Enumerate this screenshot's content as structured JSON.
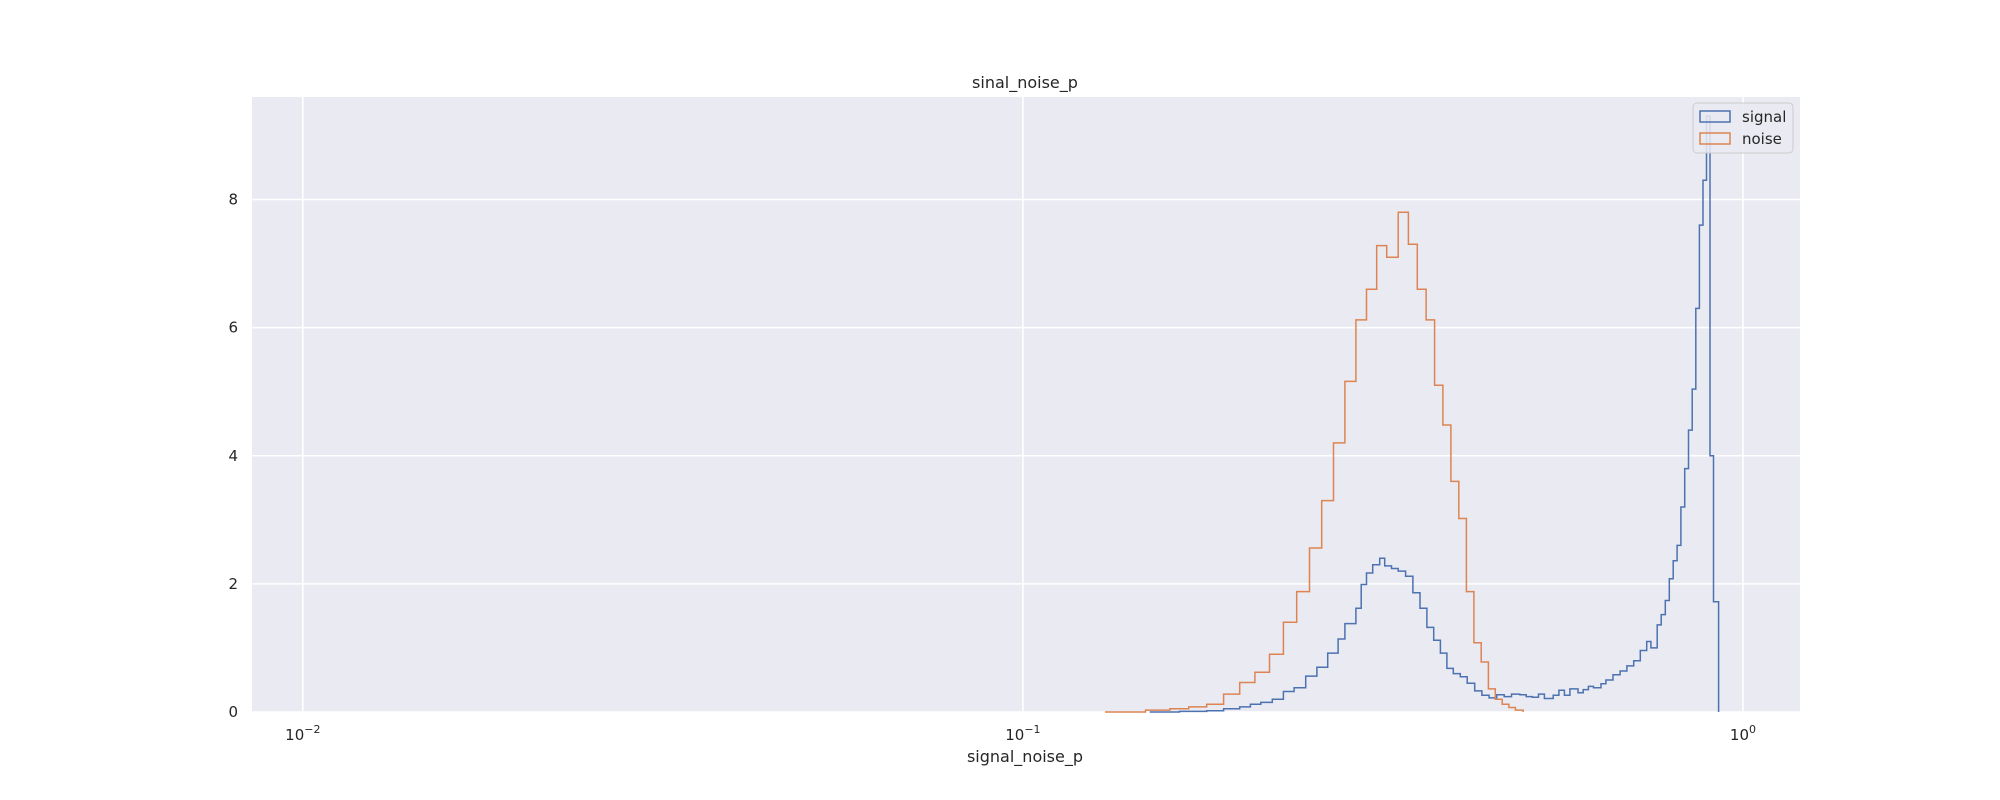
{
  "chart_data": {
    "type": "histogram-step",
    "title": "sinal_noise_p",
    "xlabel": "signal_noise_p",
    "ylabel": "",
    "x_scale": "log",
    "xlim": [
      0.0085,
      1.2
    ],
    "ylim": [
      0,
      9.6
    ],
    "x_ticks": [
      {
        "value": 0.01,
        "label": "10",
        "exp": "−2"
      },
      {
        "value": 0.1,
        "label": "10",
        "exp": "−1"
      },
      {
        "value": 1,
        "label": "10",
        "exp": "0"
      }
    ],
    "y_ticks": [
      0,
      2,
      4,
      6,
      8
    ],
    "grid": true,
    "legend_position": "top-right",
    "legend": [
      "signal",
      "noise"
    ],
    "colors": {
      "background": "#eaeaf2",
      "grid": "#ffffff",
      "signal": "#4c72b0",
      "noise": "#dd8452",
      "text": "#262626"
    },
    "series": [
      {
        "name": "signal",
        "color": "#4c72b0",
        "points": [
          [
            0.15,
            0.0
          ],
          [
            0.165,
            0.01
          ],
          [
            0.18,
            0.02
          ],
          [
            0.19,
            0.05
          ],
          [
            0.2,
            0.08
          ],
          [
            0.207,
            0.12
          ],
          [
            0.214,
            0.15
          ],
          [
            0.222,
            0.2
          ],
          [
            0.23,
            0.32
          ],
          [
            0.238,
            0.38
          ],
          [
            0.247,
            0.56
          ],
          [
            0.256,
            0.7
          ],
          [
            0.265,
            0.92
          ],
          [
            0.274,
            1.14
          ],
          [
            0.28,
            1.38
          ],
          [
            0.29,
            1.62
          ],
          [
            0.295,
            1.99
          ],
          [
            0.3,
            2.17
          ],
          [
            0.306,
            2.3
          ],
          [
            0.313,
            2.4
          ],
          [
            0.318,
            2.28
          ],
          [
            0.325,
            2.24
          ],
          [
            0.332,
            2.2
          ],
          [
            0.34,
            2.12
          ],
          [
            0.348,
            1.86
          ],
          [
            0.356,
            1.62
          ],
          [
            0.364,
            1.32
          ],
          [
            0.372,
            1.12
          ],
          [
            0.38,
            0.92
          ],
          [
            0.388,
            0.68
          ],
          [
            0.396,
            0.6
          ],
          [
            0.405,
            0.55
          ],
          [
            0.414,
            0.45
          ],
          [
            0.424,
            0.33
          ],
          [
            0.434,
            0.26
          ],
          [
            0.444,
            0.22
          ],
          [
            0.455,
            0.27
          ],
          [
            0.466,
            0.24
          ],
          [
            0.477,
            0.28
          ],
          [
            0.49,
            0.27
          ],
          [
            0.5,
            0.24
          ],
          [
            0.51,
            0.23
          ],
          [
            0.52,
            0.28
          ],
          [
            0.53,
            0.21
          ],
          [
            0.545,
            0.26
          ],
          [
            0.555,
            0.34
          ],
          [
            0.565,
            0.26
          ],
          [
            0.575,
            0.36
          ],
          [
            0.59,
            0.3
          ],
          [
            0.6,
            0.35
          ],
          [
            0.61,
            0.4
          ],
          [
            0.62,
            0.38
          ],
          [
            0.635,
            0.44
          ],
          [
            0.645,
            0.5
          ],
          [
            0.66,
            0.58
          ],
          [
            0.675,
            0.64
          ],
          [
            0.69,
            0.72
          ],
          [
            0.705,
            0.8
          ],
          [
            0.72,
            0.96
          ],
          [
            0.735,
            1.1
          ],
          [
            0.745,
            1.0
          ],
          [
            0.76,
            1.36
          ],
          [
            0.77,
            1.52
          ],
          [
            0.78,
            1.74
          ],
          [
            0.79,
            2.08
          ],
          [
            0.8,
            2.36
          ],
          [
            0.81,
            2.6
          ],
          [
            0.82,
            3.2
          ],
          [
            0.83,
            3.8
          ],
          [
            0.84,
            4.4
          ],
          [
            0.85,
            5.04
          ],
          [
            0.86,
            6.3
          ],
          [
            0.87,
            7.6
          ],
          [
            0.88,
            8.3
          ],
          [
            0.89,
            9.3
          ],
          [
            0.9,
            4.0
          ],
          [
            0.91,
            1.72
          ],
          [
            0.925,
            0.0
          ]
        ]
      },
      {
        "name": "noise",
        "color": "#dd8452",
        "points": [
          [
            0.13,
            0.0
          ],
          [
            0.148,
            0.03
          ],
          [
            0.16,
            0.05
          ],
          [
            0.17,
            0.08
          ],
          [
            0.18,
            0.12
          ],
          [
            0.19,
            0.28
          ],
          [
            0.2,
            0.46
          ],
          [
            0.21,
            0.62
          ],
          [
            0.22,
            0.9
          ],
          [
            0.23,
            1.4
          ],
          [
            0.24,
            1.88
          ],
          [
            0.25,
            2.56
          ],
          [
            0.26,
            3.3
          ],
          [
            0.27,
            4.2
          ],
          [
            0.28,
            5.16
          ],
          [
            0.29,
            6.12
          ],
          [
            0.3,
            6.6
          ],
          [
            0.31,
            7.28
          ],
          [
            0.32,
            7.1
          ],
          [
            0.332,
            7.8
          ],
          [
            0.343,
            7.3
          ],
          [
            0.353,
            6.6
          ],
          [
            0.363,
            6.12
          ],
          [
            0.373,
            5.1
          ],
          [
            0.383,
            4.48
          ],
          [
            0.393,
            3.6
          ],
          [
            0.403,
            3.02
          ],
          [
            0.413,
            1.88
          ],
          [
            0.423,
            1.08
          ],
          [
            0.433,
            0.78
          ],
          [
            0.443,
            0.36
          ],
          [
            0.453,
            0.2
          ],
          [
            0.463,
            0.12
          ],
          [
            0.473,
            0.07
          ],
          [
            0.483,
            0.03
          ],
          [
            0.495,
            0.0
          ]
        ]
      }
    ]
  }
}
